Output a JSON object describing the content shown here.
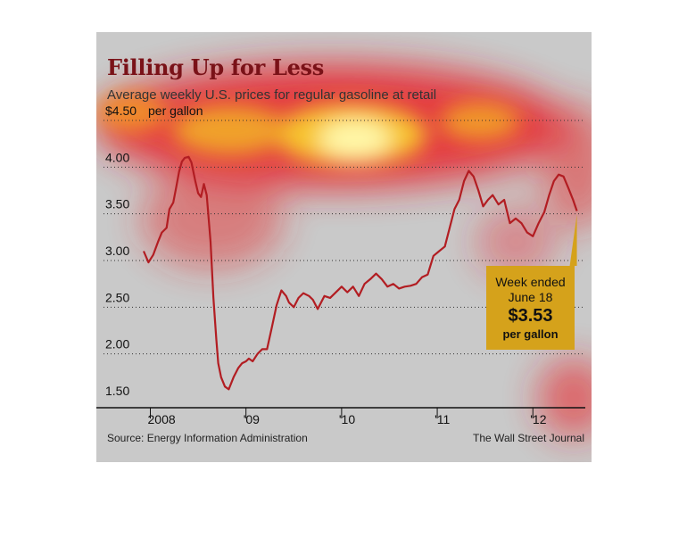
{
  "header": {
    "title": "Filling Up for Less",
    "subtitle": "Average weekly U.S. prices for regular gasoline at retail"
  },
  "chart_data": {
    "type": "line",
    "title": "Filling Up for Less",
    "subtitle": "Average weekly U.S. prices for regular gasoline at retail",
    "y_unit_label": "per gallon",
    "y_ticks": [
      "$4.50",
      "4.00",
      "3.50",
      "3.00",
      "2.50",
      "2.00",
      "1.50"
    ],
    "y_tick_values": [
      4.5,
      4.0,
      3.5,
      3.0,
      2.5,
      2.0,
      1.5
    ],
    "ylim": [
      1.5,
      4.5
    ],
    "x_ticks": [
      "2008",
      "'09",
      "'10",
      "'11",
      "'12"
    ],
    "x_tick_values": [
      2008.0,
      2009.0,
      2010.0,
      2011.0,
      2012.0
    ],
    "xlim": [
      2007.93,
      2012.52
    ],
    "grid": "horizontal dotted",
    "series": [
      {
        "color": "#b21d22",
        "x": [
          2007.93,
          2007.98,
          2008.03,
          2008.08,
          2008.12,
          2008.17,
          2008.2,
          2008.24,
          2008.27,
          2008.3,
          2008.33,
          2008.36,
          2008.4,
          2008.43,
          2008.47,
          2008.5,
          2008.53,
          2008.56,
          2008.59,
          2008.63,
          2008.66,
          2008.69,
          2008.71,
          2008.74,
          2008.78,
          2008.82,
          2008.87,
          2008.92,
          2008.96,
          2009.0,
          2009.03,
          2009.07,
          2009.12,
          2009.17,
          2009.22,
          2009.27,
          2009.32,
          2009.37,
          2009.42,
          2009.45,
          2009.5,
          2009.55,
          2009.6,
          2009.66,
          2009.7,
          2009.75,
          2009.82,
          2009.88,
          2009.94,
          2010.0,
          2010.06,
          2010.12,
          2010.18,
          2010.24,
          2010.3,
          2010.36,
          2010.42,
          2010.48,
          2010.54,
          2010.6,
          2010.66,
          2010.72,
          2010.78,
          2010.84,
          2010.9,
          2010.96,
          2011.02,
          2011.08,
          2011.13,
          2011.18,
          2011.23,
          2011.28,
          2011.33,
          2011.38,
          2011.43,
          2011.48,
          2011.53,
          2011.58,
          2011.64,
          2011.7,
          2011.76,
          2011.82,
          2011.88,
          2011.94,
          2012.0,
          2012.06,
          2012.12,
          2012.17,
          2012.22,
          2012.27,
          2012.32,
          2012.37,
          2012.42,
          2012.46
        ],
        "y": [
          3.1,
          2.98,
          3.06,
          3.2,
          3.3,
          3.35,
          3.55,
          3.62,
          3.78,
          3.95,
          4.06,
          4.1,
          4.11,
          4.05,
          3.85,
          3.72,
          3.68,
          3.82,
          3.7,
          3.2,
          2.6,
          2.15,
          1.9,
          1.75,
          1.65,
          1.62,
          1.75,
          1.85,
          1.9,
          1.92,
          1.95,
          1.92,
          2.0,
          2.05,
          2.05,
          2.28,
          2.52,
          2.68,
          2.62,
          2.55,
          2.5,
          2.6,
          2.65,
          2.62,
          2.58,
          2.48,
          2.62,
          2.6,
          2.66,
          2.72,
          2.66,
          2.72,
          2.62,
          2.75,
          2.8,
          2.86,
          2.8,
          2.72,
          2.75,
          2.7,
          2.72,
          2.73,
          2.75,
          2.82,
          2.85,
          3.05,
          3.1,
          3.15,
          3.35,
          3.55,
          3.65,
          3.85,
          3.96,
          3.9,
          3.75,
          3.58,
          3.65,
          3.7,
          3.6,
          3.65,
          3.4,
          3.45,
          3.4,
          3.3,
          3.26,
          3.4,
          3.52,
          3.7,
          3.85,
          3.92,
          3.9,
          3.78,
          3.65,
          3.53
        ]
      }
    ],
    "annotation": {
      "line1": "Week ended",
      "line2": "June 18",
      "value": "$3.53",
      "line4": "per gallon"
    }
  },
  "footer": {
    "source": "Source: Energy Information Administration",
    "credit": "The Wall Street Journal"
  },
  "colors": {
    "background": "#c9c9c9",
    "line": "#b21d22",
    "title": "#7a1218",
    "callout": "#d5a21b"
  }
}
